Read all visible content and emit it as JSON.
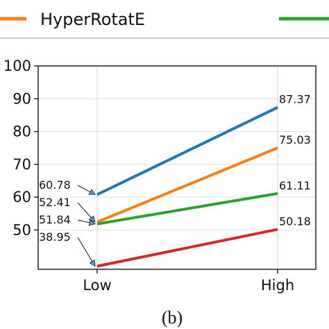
{
  "chart_data": {
    "type": "line",
    "categories": [
      "Low",
      "High"
    ],
    "ylim": [
      38,
      100
    ],
    "yticks": [
      50,
      60,
      70,
      80,
      90,
      100
    ],
    "grid": true,
    "legend": {
      "placement": "top",
      "entries": [
        {
          "label": "HyperRotatE",
          "color": "#ff7f0e"
        },
        {
          "label": "",
          "color": "#2ca02c"
        }
      ]
    },
    "series": [
      {
        "color": "#1f77b4",
        "values": [
          60.78,
          87.37
        ],
        "labels": [
          "60.78",
          "87.37"
        ]
      },
      {
        "color": "#ff7f0e",
        "values": [
          52.41,
          75.03
        ],
        "labels": [
          "52.41",
          "75.03"
        ]
      },
      {
        "color": "#2ca02c",
        "values": [
          51.84,
          61.11
        ],
        "labels": [
          "51.84",
          "61.11"
        ]
      },
      {
        "color": "#d62728",
        "values": [
          38.95,
          50.18
        ],
        "labels": [
          "38.95",
          "50.18"
        ]
      }
    ]
  },
  "caption": "(b)"
}
